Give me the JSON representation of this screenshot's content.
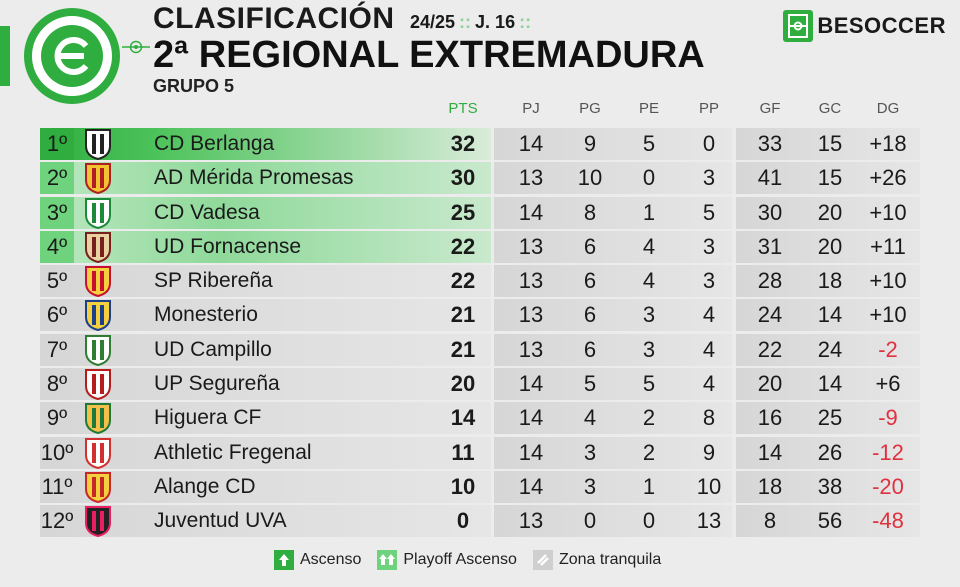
{
  "header": {
    "title": "CLASIFICACIÓN",
    "season": "24/25",
    "matchday": "J. 16",
    "separator": "::",
    "league": "2ª REGIONAL EXTREMADURA",
    "group": "GRUPO 5",
    "brand": "BESOCCER"
  },
  "colors": {
    "accent": "#2fae3f",
    "negative": "#e0313f"
  },
  "columns": [
    "PTS",
    "PJ",
    "PG",
    "PE",
    "PP",
    "GF",
    "GC",
    "DG"
  ],
  "rows": [
    {
      "pos": "1º",
      "team": "CD Berlanga",
      "zone": "asc",
      "pts": "32",
      "pj": "14",
      "pg": "9",
      "pe": "5",
      "pp": "0",
      "gf": "33",
      "gc": "15",
      "dg": "+18"
    },
    {
      "pos": "2º",
      "team": "AD Mérida Promesas",
      "zone": "play",
      "pts": "30",
      "pj": "13",
      "pg": "10",
      "pe": "0",
      "pp": "3",
      "gf": "41",
      "gc": "15",
      "dg": "+26"
    },
    {
      "pos": "3º",
      "team": "CD Vadesa",
      "zone": "play",
      "pts": "25",
      "pj": "14",
      "pg": "8",
      "pe": "1",
      "pp": "5",
      "gf": "30",
      "gc": "20",
      "dg": "+10"
    },
    {
      "pos": "4º",
      "team": "UD Fornacense",
      "zone": "play",
      "pts": "22",
      "pj": "13",
      "pg": "6",
      "pe": "4",
      "pp": "3",
      "gf": "31",
      "gc": "20",
      "dg": "+11"
    },
    {
      "pos": "5º",
      "team": "SP Ribereña",
      "zone": "",
      "pts": "22",
      "pj": "13",
      "pg": "6",
      "pe": "4",
      "pp": "3",
      "gf": "28",
      "gc": "18",
      "dg": "+10"
    },
    {
      "pos": "6º",
      "team": "Monesterio",
      "zone": "",
      "pts": "21",
      "pj": "13",
      "pg": "6",
      "pe": "3",
      "pp": "4",
      "gf": "24",
      "gc": "14",
      "dg": "+10"
    },
    {
      "pos": "7º",
      "team": "UD Campillo",
      "zone": "",
      "pts": "21",
      "pj": "13",
      "pg": "6",
      "pe": "3",
      "pp": "4",
      "gf": "22",
      "gc": "24",
      "dg": "-2"
    },
    {
      "pos": "8º",
      "team": "UP Segureña",
      "zone": "",
      "pts": "20",
      "pj": "14",
      "pg": "5",
      "pe": "5",
      "pp": "4",
      "gf": "20",
      "gc": "14",
      "dg": "+6"
    },
    {
      "pos": "9º",
      "team": "Higuera CF",
      "zone": "",
      "pts": "14",
      "pj": "14",
      "pg": "4",
      "pe": "2",
      "pp": "8",
      "gf": "16",
      "gc": "25",
      "dg": "-9"
    },
    {
      "pos": "10º",
      "team": "Athletic Fregenal",
      "zone": "",
      "pts": "11",
      "pj": "14",
      "pg": "3",
      "pe": "2",
      "pp": "9",
      "gf": "14",
      "gc": "26",
      "dg": "-12"
    },
    {
      "pos": "11º",
      "team": "Alange CD",
      "zone": "",
      "pts": "10",
      "pj": "14",
      "pg": "3",
      "pe": "1",
      "pp": "10",
      "gf": "18",
      "gc": "38",
      "dg": "-20"
    },
    {
      "pos": "12º",
      "team": "Juventud UVA",
      "zone": "",
      "pts": "0",
      "pj": "13",
      "pg": "0",
      "pe": "0",
      "pp": "13",
      "gf": "8",
      "gc": "56",
      "dg": "-48"
    }
  ],
  "legend": [
    {
      "label": "Ascenso",
      "icon": "arrow-up-icon",
      "color": "#2fae3f"
    },
    {
      "label": "Playoff Ascenso",
      "icon": "playoff-arrows-icon",
      "color": "#6fd27d"
    },
    {
      "label": "Zona tranquila",
      "icon": "link-icon",
      "color": "#cfcfcf"
    }
  ]
}
